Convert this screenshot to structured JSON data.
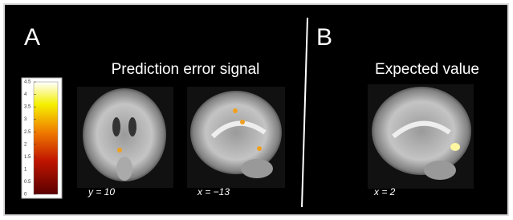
{
  "panels": [
    {
      "letter": "A",
      "title": "Prediction error signal",
      "slices": [
        "y = 10",
        "x = −13"
      ]
    },
    {
      "letter": "B",
      "title": "Expected value",
      "slices": [
        "x = 2"
      ]
    }
  ],
  "colorbar": {
    "lim": [
      0,
      4.5
    ],
    "ticks": [
      0,
      0.5,
      1,
      1.5,
      2,
      2.5,
      3,
      3.5,
      4,
      4.5
    ]
  }
}
